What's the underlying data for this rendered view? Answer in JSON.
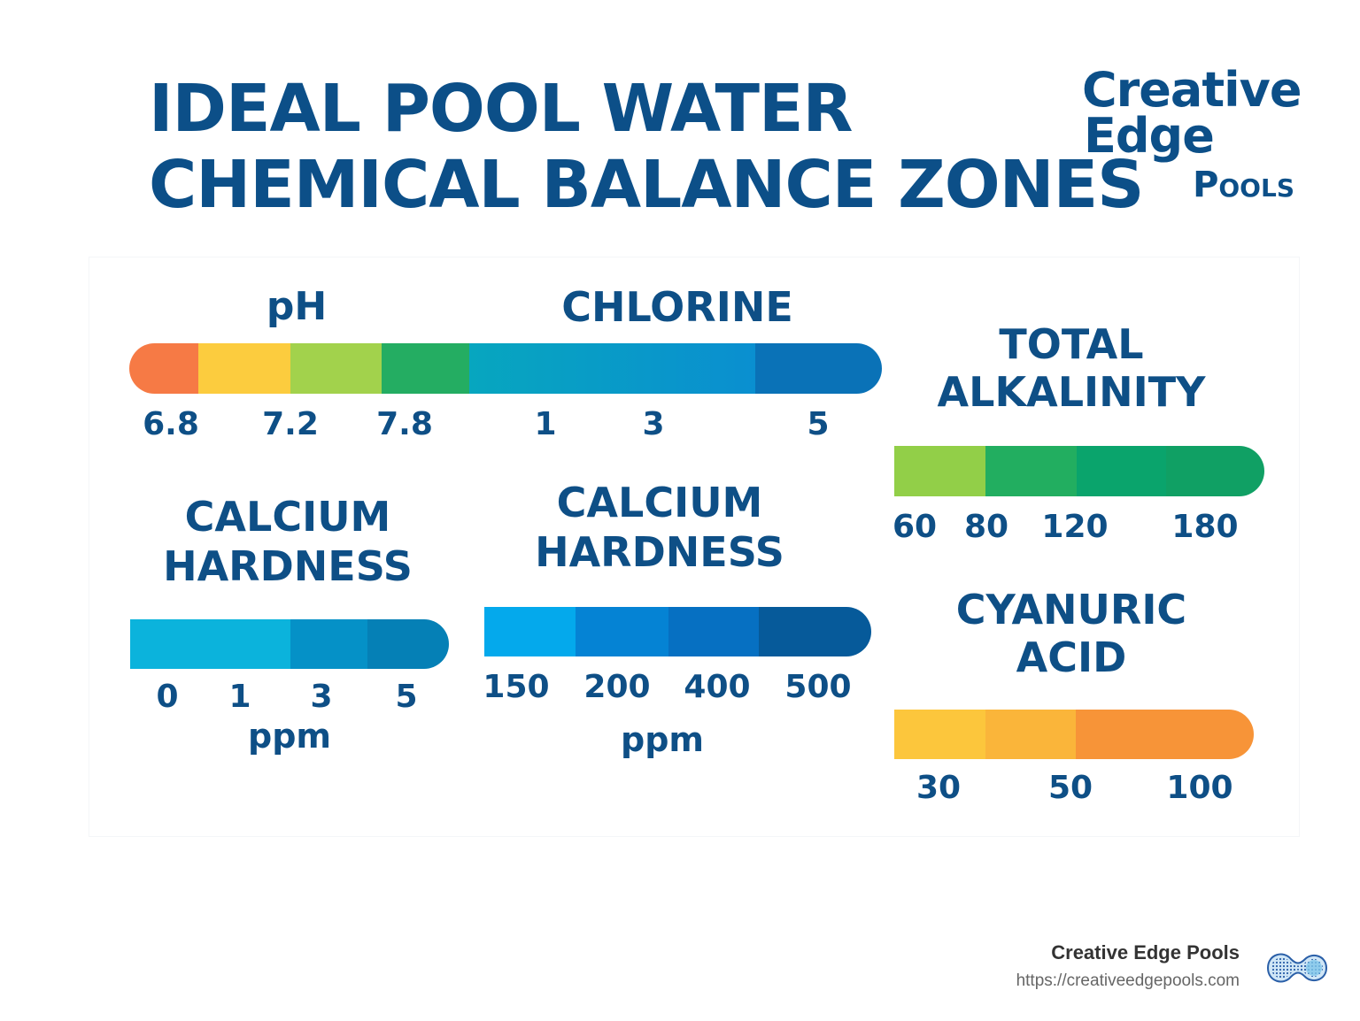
{
  "header": {
    "title_line1": "IDEAL POOL WATER",
    "title_line2": "CHEMICAL BALANCE ZONES"
  },
  "logo": {
    "line1": "Creative",
    "line2": "Edge",
    "line3": "Pools"
  },
  "scales": {
    "ph": {
      "label": "pH",
      "ticks": [
        "6.8",
        "7.2",
        "7.8"
      ],
      "colors": [
        "#f67a45",
        "#fccc3e",
        "#a2d24c",
        "#24ad62"
      ]
    },
    "chlorine": {
      "label": "CHLORINE",
      "ticks": [
        "1",
        "3",
        "5"
      ],
      "colors": [
        "#07a6bf",
        "#0a8fd0",
        "#0a72b7"
      ]
    },
    "total_alkalinity": {
      "label_line1": "TOTAL",
      "label_line2": "ALKALINITY",
      "ticks": [
        "60",
        "80",
        "120",
        "180"
      ],
      "colors": [
        "#92cf48",
        "#22ae60",
        "#0aa46c",
        "#10a064"
      ]
    },
    "calcium_hardness_left": {
      "label_line1": "CALCIUM",
      "label_line2": "HARDNESS",
      "ticks": [
        "0",
        "1",
        "3",
        "5"
      ],
      "unit": "ppm",
      "colors": [
        "#0bb3dc",
        "#0591c7",
        "#0580b6"
      ]
    },
    "calcium_hardness_right": {
      "label_line1": "CALCIUM",
      "label_line2": "HARDNESS",
      "ticks": [
        "150",
        "200",
        "400",
        "500"
      ],
      "unit": "ppm",
      "colors": [
        "#04a9ec",
        "#0583d4",
        "#0670c2",
        "#065a9a"
      ]
    },
    "cyanuric_acid": {
      "label_line1": "CYANURIC",
      "label_line2": "ACID",
      "ticks": [
        "30",
        "50",
        "100"
      ],
      "colors": [
        "#fcc63c",
        "#fab53a",
        "#f79438"
      ]
    }
  },
  "footer": {
    "name": "Creative Edge Pools",
    "url": "https://creativeedgepools.com"
  }
}
